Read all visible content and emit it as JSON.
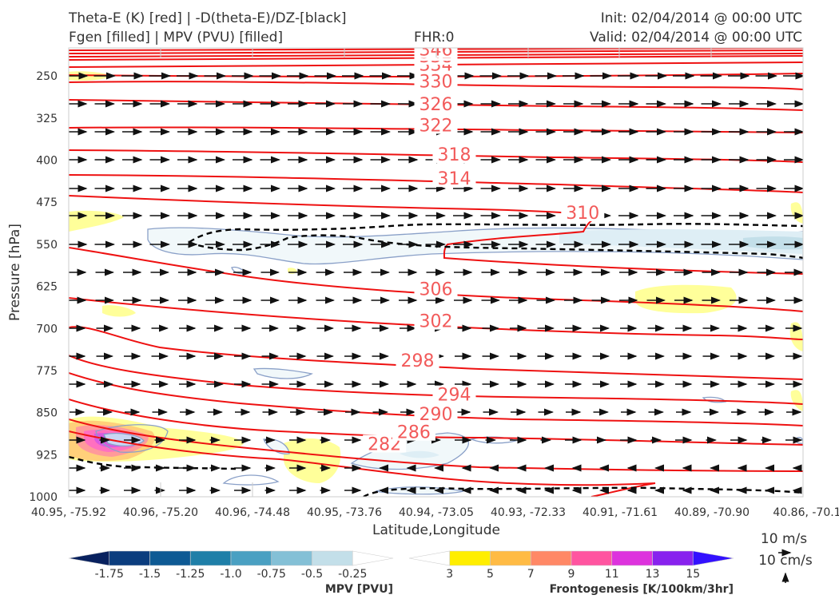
{
  "header": {
    "title_left_1": "Theta-E (K) [red] | -D(theta-E)/DZ-[black]",
    "title_left_2": "Fgen [filled] | MPV (PVU) [filled]",
    "fhr": "FHR:0",
    "init": "Init: 02/04/2014 @ 00:00 UTC",
    "valid": "Valid: 02/04/2014 @ 00:00 UTC"
  },
  "chart_data": {
    "type": "cross-section",
    "title": "Theta-E (K) [red] | -D(theta-E)/DZ-[black] / Fgen [filled] | MPV (PVU) [filled]",
    "xlabel": "Latitude,Longitude",
    "ylabel": "Pressure [hPa]",
    "ylim": [
      1000,
      200
    ],
    "y_ticks": [
      250,
      325,
      400,
      475,
      550,
      625,
      700,
      775,
      850,
      925,
      1000
    ],
    "x_ticks": [
      "40.95, -75.92",
      "40.96, -75.20",
      "40.96, -74.48",
      "40.95, -73.76",
      "40.94, -73.05",
      "40.93, -72.33",
      "40.91, -71.61",
      "40.89, -70.90",
      "40.86, -70.1"
    ],
    "theta_e_labels": [
      {
        "value": "282",
        "x": 0.43,
        "p": 911
      },
      {
        "value": "286",
        "x": 0.47,
        "p": 890
      },
      {
        "value": "290",
        "x": 0.5,
        "p": 858
      },
      {
        "value": "294",
        "x": 0.525,
        "p": 823
      },
      {
        "value": "298",
        "x": 0.475,
        "p": 762
      },
      {
        "value": "302",
        "x": 0.5,
        "p": 692
      },
      {
        "value": "306",
        "x": 0.5,
        "p": 635
      },
      {
        "value": "310",
        "x": 0.7,
        "p": 499
      },
      {
        "value": "314",
        "x": 0.525,
        "p": 438
      },
      {
        "value": "318",
        "x": 0.525,
        "p": 395
      },
      {
        "value": "322",
        "x": 0.5,
        "p": 343
      },
      {
        "value": "326",
        "x": 0.5,
        "p": 305
      },
      {
        "value": "330",
        "x": 0.5,
        "p": 265
      },
      {
        "value": "334",
        "x": 0.5,
        "p": 235
      },
      {
        "value": "338",
        "x": 0.5,
        "p": 220
      },
      {
        "value": "342",
        "x": 0.5,
        "p": 213
      },
      {
        "value": "346",
        "x": 0.5,
        "p": 208
      }
    ],
    "colorbar_mpv": {
      "label": "MPV [PVU]",
      "ticks": [
        "-1.75",
        "-1.5",
        "-1.25",
        "-1.0",
        "-0.75",
        "-0.5",
        "-0.25"
      ],
      "colors": [
        "#08215e",
        "#0b3d7e",
        "#0e5a94",
        "#1f7fa8",
        "#4aa0c2",
        "#84c0d6",
        "#c3dfe9",
        "#ffffff"
      ]
    },
    "colorbar_fgen": {
      "label": "Frontogenesis [K/100km/3hr]",
      "ticks": [
        "3",
        "5",
        "7",
        "9",
        "11",
        "13",
        "15"
      ],
      "colors": [
        "#ffffff",
        "#ffee00",
        "#ffbb44",
        "#ff8866",
        "#ff55a0",
        "#dd33dd",
        "#8822ee",
        "#3311ff"
      ]
    },
    "legend_vector_1": "10 m/s",
    "legend_vector_2": "10 cm/s"
  }
}
